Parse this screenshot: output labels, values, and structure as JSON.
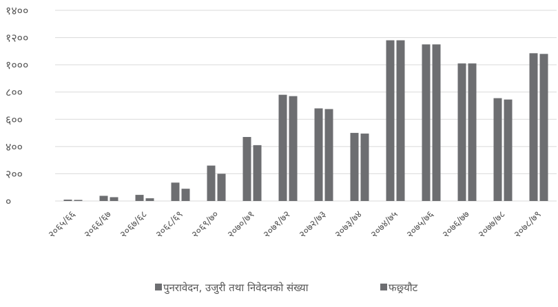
{
  "chart_data": {
    "type": "bar",
    "title": "",
    "xlabel": "",
    "ylabel": "",
    "ylim": [
      0,
      1400
    ],
    "yticks": [
      0,
      200,
      400,
      600,
      800,
      1000,
      1200,
      1400
    ],
    "ytick_labels": [
      "०",
      "२००",
      "४००",
      "६००",
      "८००",
      "१०००",
      "१२००",
      "१४००"
    ],
    "grid": true,
    "legend_position": "bottom",
    "categories": [
      "२०६५/६६",
      "२०६६/६७",
      "२०६७/६८",
      "२०६८/६९",
      "२०६९/७०",
      "२०७०/७१",
      "२०७१/७२",
      "२०७२/७३",
      "२०७३/७४",
      "२०७४/७५",
      "२०७५/७६",
      "२०७६/७७",
      "२०७७/७८",
      "२०७८/७९"
    ],
    "series": [
      {
        "name": "पुनरावेदन, उजुरी तथा निवेदनको संख्या",
        "values": [
          10,
          38,
          45,
          135,
          260,
          470,
          780,
          680,
          500,
          1180,
          1150,
          1010,
          755,
          1085
        ]
      },
      {
        "name": "फछ्र्यौट",
        "values": [
          8,
          28,
          20,
          90,
          200,
          410,
          770,
          675,
          495,
          1180,
          1150,
          1010,
          745,
          1080
        ]
      }
    ],
    "colors": {
      "series": [
        "#6d6e71",
        "#6d6e71"
      ],
      "grid": "#d9d9d9",
      "text": "#555555"
    }
  }
}
